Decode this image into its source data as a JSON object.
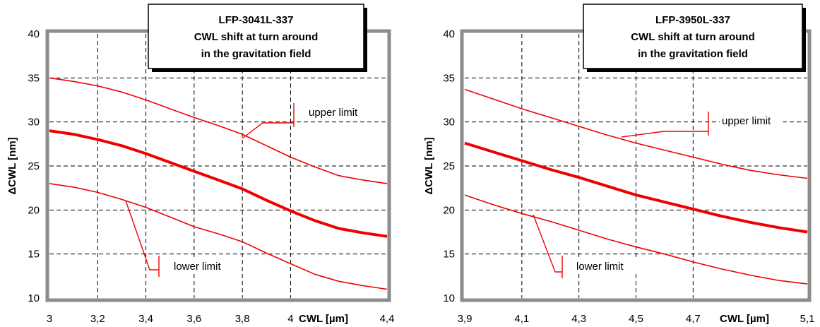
{
  "chart_data": [
    {
      "type": "line",
      "title_lines": [
        "LFP-3041L-337",
        "CWL shift at turn around",
        "in the gravitation field"
      ],
      "xlabel": "CWL [µm]",
      "ylabel": "ΔCWL [nm]",
      "xlim": [
        3.0,
        4.4
      ],
      "ylim": [
        10,
        40
      ],
      "xticks": [
        3.0,
        3.2,
        3.4,
        3.6,
        3.8,
        4.0,
        4.4
      ],
      "xtick_labels": [
        "3",
        "3,2",
        "3,4",
        "3,6",
        "3,8",
        "4",
        "4,4"
      ],
      "yticks": [
        10,
        15,
        20,
        25,
        30,
        35,
        40
      ],
      "ytick_labels": [
        "10",
        "15",
        "20",
        "25",
        "30",
        "35",
        "40"
      ],
      "grid": true,
      "line_color": "#ee0000",
      "annotations": [
        "upper limit",
        "lower limit"
      ],
      "series": [
        {
          "x": [
            3.0,
            3.1,
            3.2,
            3.3,
            3.4,
            3.5,
            3.6,
            3.7,
            3.8,
            3.9,
            4.0,
            4.1,
            4.2,
            4.3,
            4.4
          ],
          "values": [
            35.0,
            34.6,
            34.1,
            33.4,
            32.5,
            31.5,
            30.5,
            29.6,
            28.6,
            27.3,
            26.0,
            24.9,
            23.9,
            23.4,
            23.0
          ]
        },
        {
          "x": [
            3.0,
            3.1,
            3.2,
            3.3,
            3.4,
            3.5,
            3.6,
            3.7,
            3.8,
            3.9,
            4.0,
            4.1,
            4.2,
            4.3,
            4.4
          ],
          "values": [
            29.0,
            28.6,
            28.0,
            27.3,
            26.4,
            25.4,
            24.4,
            23.4,
            22.4,
            21.1,
            19.9,
            18.8,
            17.9,
            17.4,
            17.0
          ]
        },
        {
          "x": [
            3.0,
            3.1,
            3.2,
            3.3,
            3.4,
            3.5,
            3.6,
            3.7,
            3.8,
            3.9,
            4.0,
            4.1,
            4.2,
            4.3,
            4.4
          ],
          "values": [
            23.0,
            22.6,
            22.0,
            21.2,
            20.3,
            19.2,
            18.1,
            17.3,
            16.4,
            15.1,
            13.9,
            12.7,
            11.9,
            11.4,
            11.0
          ]
        }
      ]
    },
    {
      "type": "line",
      "title_lines": [
        "LFP-3950L-337",
        "CWL shift at turn around",
        "in the gravitation field"
      ],
      "xlabel": "CWL [µm]",
      "ylabel": "ΔCWL [nm]",
      "xlim": [
        3.9,
        5.1
      ],
      "ylim": [
        10,
        40
      ],
      "xticks": [
        3.9,
        4.1,
        4.3,
        4.5,
        4.7,
        5.1
      ],
      "xtick_labels": [
        "3,9",
        "4,1",
        "4,3",
        "4,5",
        "4,7",
        "5,1"
      ],
      "yticks": [
        10,
        15,
        20,
        25,
        30,
        35,
        40
      ],
      "ytick_labels": [
        "10",
        "15",
        "20",
        "25",
        "30",
        "35",
        "40"
      ],
      "grid": true,
      "line_color": "#ee0000",
      "annotations": [
        "upper limit",
        "lower limit"
      ],
      "series": [
        {
          "x": [
            3.9,
            4.0,
            4.1,
            4.2,
            4.3,
            4.4,
            4.5,
            4.6,
            4.7,
            4.8,
            4.9,
            5.0,
            5.1
          ],
          "values": [
            33.7,
            32.6,
            31.5,
            30.5,
            29.5,
            28.5,
            27.6,
            26.8,
            26.0,
            25.2,
            24.5,
            24.0,
            23.6
          ]
        },
        {
          "x": [
            3.9,
            4.0,
            4.1,
            4.2,
            4.3,
            4.4,
            4.5,
            4.6,
            4.7,
            4.8,
            4.9,
            5.0,
            5.1
          ],
          "values": [
            27.6,
            26.6,
            25.6,
            24.6,
            23.7,
            22.7,
            21.7,
            20.9,
            20.1,
            19.3,
            18.6,
            18.0,
            17.5
          ]
        },
        {
          "x": [
            3.9,
            4.0,
            4.1,
            4.2,
            4.3,
            4.4,
            4.5,
            4.6,
            4.7,
            4.8,
            4.9,
            5.0,
            5.1
          ],
          "values": [
            21.7,
            20.6,
            19.6,
            18.7,
            17.7,
            16.7,
            15.8,
            15.0,
            14.1,
            13.3,
            12.6,
            12.0,
            11.6
          ]
        }
      ]
    }
  ]
}
